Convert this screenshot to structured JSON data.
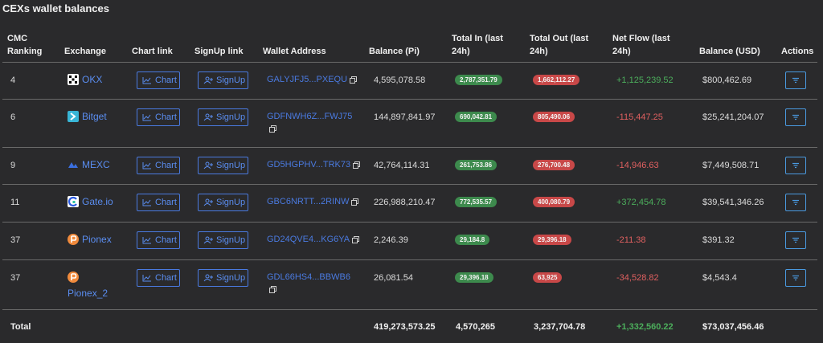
{
  "title": "CEXs wallet balances",
  "headers": {
    "cmc": "CMC\nRanking",
    "exchange": "Exchange",
    "chart": "Chart link",
    "signup": "SignUp link",
    "wallet": "Wallet Address",
    "balance_pi": "Balance (Pi)",
    "total_in": "Total In (last\n24h)",
    "total_out": "Total Out (last\n24h)",
    "net_flow": "Net Flow (last\n24h)",
    "balance_usd": "Balance (USD)",
    "actions": "Actions"
  },
  "buttons": {
    "chart": "Chart",
    "signup": "SignUp"
  },
  "colors": {
    "accent": "#5a8df0",
    "positive": "#4cae5c",
    "negative": "#e06060",
    "pill_in": "#3d8a4d",
    "pill_out": "#c84848"
  },
  "rows": [
    {
      "rank": "4",
      "exchange": "OKX",
      "logo": "okx-logo",
      "wallet": "GALYJFJ5...PXEQU",
      "balance_pi": "4,595,078.58",
      "total_in": "2,787,351.79",
      "total_out": "1,662,112.27",
      "net_flow": "+1,125,239.52",
      "flow_sign": "pos",
      "balance_usd": "$800,462.69"
    },
    {
      "rank": "6",
      "exchange": "Bitget",
      "logo": "bitget-logo",
      "wallet": "GDFNWH6Z...FWJ75",
      "balance_pi": "144,897,841.97",
      "total_in": "690,042.81",
      "total_out": "805,490.06",
      "net_flow": "-115,447.25",
      "flow_sign": "neg",
      "balance_usd": "$25,241,204.07"
    },
    {
      "rank": "9",
      "exchange": "MEXC",
      "logo": "mexc-logo",
      "wallet": "GD5HGPHV...TRK73",
      "balance_pi": "42,764,114.31",
      "total_in": "261,753.86",
      "total_out": "276,700.48",
      "net_flow": "-14,946.63",
      "flow_sign": "neg",
      "balance_usd": "$7,449,508.71"
    },
    {
      "rank": "11",
      "exchange": "Gate.io",
      "logo": "gateio-logo",
      "wallet": "GBC6NRTT...2RINW",
      "balance_pi": "226,988,210.47",
      "total_in": "772,535.57",
      "total_out": "400,080.79",
      "net_flow": "+372,454.78",
      "flow_sign": "pos",
      "balance_usd": "$39,541,346.26"
    },
    {
      "rank": "37",
      "exchange": "Pionex",
      "logo": "pionex-logo",
      "wallet": "GD24QVE4...KG6YA",
      "balance_pi": "2,246.39",
      "total_in": "29,184.8",
      "total_out": "29,396.18",
      "net_flow": "-211.38",
      "flow_sign": "neg",
      "balance_usd": "$391.32"
    },
    {
      "rank": "37",
      "exchange": "Pionex_2",
      "logo": "pionex-logo",
      "wallet": "GDL66HS4...BBWB6",
      "balance_pi": "26,081.54",
      "total_in": "29,396.18",
      "total_out": "63,925",
      "net_flow": "-34,528.82",
      "flow_sign": "neg",
      "balance_usd": "$4,543.4"
    }
  ],
  "total": {
    "label": "Total",
    "balance_pi": "419,273,573.25",
    "total_in": "4,570,265",
    "total_out": "3,237,704.78",
    "net_flow": "+1,332,560.22",
    "balance_usd": "$73,037,456.46"
  }
}
